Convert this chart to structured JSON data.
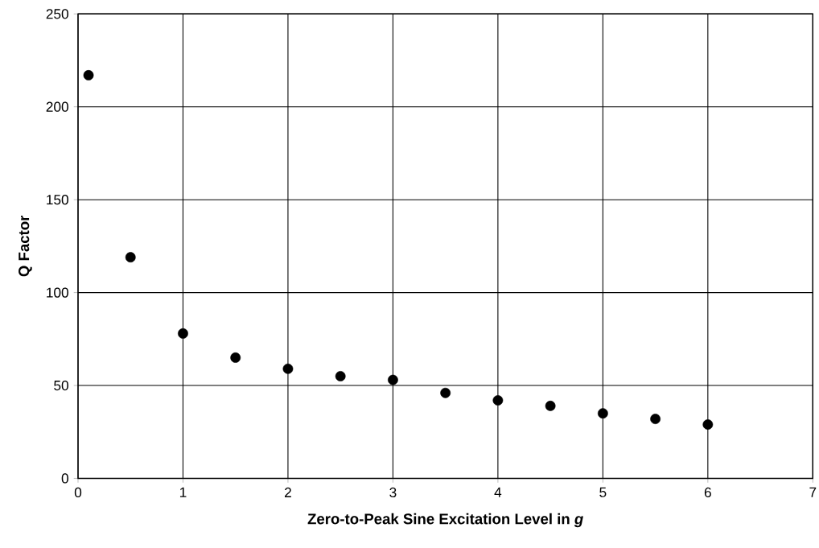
{
  "chart_data": {
    "type": "scatter",
    "xlabel": "Zero-to-Peak Sine Excitation Level in *g*",
    "ylabel": "Q Factor",
    "x": [
      0.1,
      0.5,
      1,
      1.5,
      2,
      2.5,
      3,
      3.5,
      4,
      4.5,
      5,
      5.5,
      6
    ],
    "series": [
      {
        "color": "#000000",
        "values": [
          217,
          119,
          78,
          65,
          59,
          55,
          53,
          46,
          42,
          39,
          35,
          32,
          29
        ]
      }
    ],
    "xlim": [
      0,
      7
    ],
    "ylim": [
      0,
      250
    ],
    "xticks": [
      0,
      1,
      2,
      3,
      4,
      5,
      6,
      7
    ],
    "yticks": [
      0,
      50,
      100,
      150,
      200,
      250
    ],
    "grid": true,
    "marker": "circle"
  }
}
